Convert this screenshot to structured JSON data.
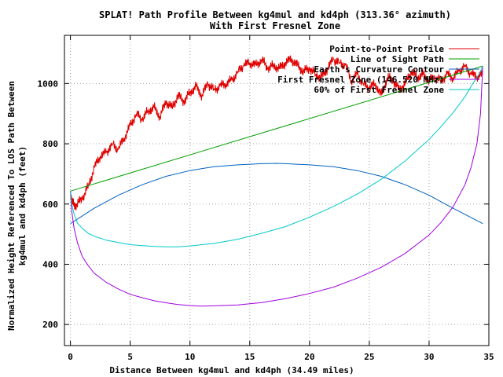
{
  "chart_data": {
    "type": "line",
    "title": "SPLAT! Path Profile Between kg4mul and kd4ph (313.36° azimuth)",
    "subtitle": "With First Fresnel Zone",
    "xlabel": "Distance Between kg4mul and kd4ph (34.49 miles)",
    "ylabel": "Normalized Height Referenced To LOS Path Between kg4mul and kd4ph (feet)",
    "ylabel_lines": [
      "Normalized Height Referenced To LOS Path Between",
      "kg4mul and kd4ph (feet)"
    ],
    "xlim": [
      -0.5,
      35
    ],
    "ylim": [
      130,
      1160
    ],
    "xticks": [
      0,
      5,
      10,
      15,
      20,
      25,
      30,
      35
    ],
    "yticks": [
      200,
      400,
      600,
      800,
      1000
    ],
    "grid": true,
    "legend_position": "top-right",
    "path_length_miles": 34.49,
    "series": [
      {
        "name": "Point-to-Point Profile",
        "color": "#e00000",
        "style": "terrain",
        "x": [
          0,
          0.2,
          0.5,
          1,
          1.5,
          2,
          2.5,
          3,
          3.5,
          4,
          4.5,
          5,
          5.5,
          6,
          6.5,
          7,
          7.5,
          8,
          8.5,
          9,
          9.5,
          10,
          10.5,
          11,
          11.5,
          12,
          12.5,
          13,
          13.5,
          14,
          14.5,
          15,
          15.5,
          16,
          16.5,
          17,
          17.5,
          18,
          18.5,
          19,
          19.5,
          20,
          20.5,
          21,
          21.5,
          22,
          22.5,
          23,
          23.5,
          24,
          24.5,
          25,
          25.5,
          26,
          26.5,
          27,
          27.5,
          28,
          28.5,
          29,
          29.5,
          30,
          30.5,
          31,
          31.5,
          32,
          32.5,
          33,
          33.5,
          34,
          34.49
        ],
        "values": [
          640,
          600,
          595,
          620,
          660,
          720,
          760,
          770,
          800,
          780,
          820,
          860,
          900,
          880,
          910,
          920,
          890,
          940,
          920,
          960,
          940,
          970,
          990,
          960,
          1000,
          980,
          990,
          1000,
          1010,
          1040,
          1060,
          1070,
          1060,
          1080,
          1050,
          1060,
          1050,
          1070,
          1080,
          1060,
          1040,
          1050,
          1030,
          1020,
          1050,
          1080,
          1070,
          1060,
          1010,
          1030,
          1000,
          985,
          1000,
          960,
          1020,
          1010,
          980,
          1000,
          1040,
          1020,
          1030,
          1010,
          1020,
          1010,
          1030,
          1020,
          1040,
          1060,
          1030,
          1025,
          1030
        ]
      },
      {
        "name": "Line of Sight Path",
        "color": "#00a000",
        "style": "line",
        "x": [
          0,
          34.49
        ],
        "values": [
          643,
          1058
        ]
      },
      {
        "name": "Earth's Curvature Contour",
        "color": "#0060c0",
        "style": "line",
        "x": [
          0,
          2,
          4,
          6,
          8,
          10,
          12,
          14,
          16,
          17.245,
          18,
          20,
          22,
          24,
          26,
          28,
          30,
          32,
          34.49
        ],
        "values": [
          535,
          586,
          629,
          664,
          692,
          711,
          724,
          730,
          734,
          735,
          734,
          730,
          724,
          711,
          692,
          664,
          629,
          586,
          535
        ]
      },
      {
        "name": "First Fresnel Zone (146.520 MHz)",
        "color": "#a000e0",
        "style": "line",
        "x": [
          0,
          0.1,
          0.3,
          0.6,
          1,
          1.5,
          2,
          3,
          4,
          5,
          6,
          7,
          8,
          9,
          10,
          11,
          12,
          14,
          16,
          18,
          20,
          22,
          24,
          26,
          28,
          30,
          31,
          32,
          33,
          33.5,
          34,
          34.3,
          34.49
        ],
        "values": [
          643,
          580,
          520,
          470,
          425,
          395,
          370,
          340,
          318,
          300,
          289,
          279,
          272,
          266,
          263,
          261,
          262,
          265,
          273,
          286,
          303,
          324,
          354,
          390,
          436,
          497,
          539,
          590,
          664,
          720,
          800,
          900,
          1058
        ]
      },
      {
        "name": "60% of First Fresnel Zone",
        "color": "#00c8c8",
        "style": "line",
        "x": [
          0,
          0.1,
          0.3,
          0.6,
          1,
          1.5,
          2,
          3,
          4,
          5,
          6,
          7,
          8,
          9,
          10,
          11,
          12,
          14,
          16,
          18,
          20,
          22,
          24,
          26,
          28,
          30,
          31,
          32,
          33,
          33.5,
          34,
          34.3,
          34.49
        ],
        "values": [
          643,
          602,
          567,
          536,
          519,
          502,
          493,
          480,
          472,
          465,
          462,
          459,
          458,
          458,
          461,
          465,
          469,
          483,
          503,
          525,
          556,
          592,
          633,
          682,
          743,
          814,
          857,
          903,
          956,
          990,
          1020,
          1040,
          1058
        ]
      }
    ]
  }
}
